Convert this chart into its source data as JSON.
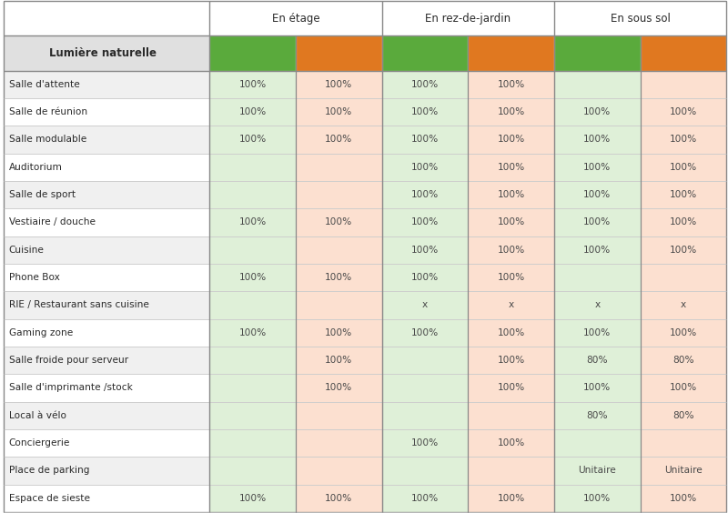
{
  "row_labels": [
    "Lumière naturelle",
    "Salle d'attente",
    "Salle de réunion",
    "Salle modulable",
    "Auditorium",
    "Salle de sport",
    "Vestiaire / douche",
    "Cuisine",
    "Phone Box",
    "RIE / Restaurant sans cuisine",
    "Gaming zone",
    "Salle froide pour serveur",
    "Salle d'imprimante /stock",
    "Local à vélo",
    "Conciergerie",
    "Place de parking",
    "Espace de sieste"
  ],
  "col_groups": [
    "En étage",
    "En rez-de-jardin",
    "En sous sol"
  ],
  "green_color": "#5aaa3c",
  "orange_color": "#e07820",
  "light_green_bg": "#dff0d8",
  "light_orange_bg": "#fce0d0",
  "lumiere_bg": "#e0e0e0",
  "cell_data": [
    [
      "",
      "",
      "",
      "",
      "",
      ""
    ],
    [
      "100%",
      "100%",
      "100%",
      "100%",
      "",
      ""
    ],
    [
      "100%",
      "100%",
      "100%",
      "100%",
      "100%",
      "100%"
    ],
    [
      "100%",
      "100%",
      "100%",
      "100%",
      "100%",
      "100%"
    ],
    [
      "",
      "",
      "100%",
      "100%",
      "100%",
      "100%"
    ],
    [
      "",
      "",
      "100%",
      "100%",
      "100%",
      "100%"
    ],
    [
      "100%",
      "100%",
      "100%",
      "100%",
      "100%",
      "100%"
    ],
    [
      "",
      "",
      "100%",
      "100%",
      "100%",
      "100%"
    ],
    [
      "100%",
      "100%",
      "100%",
      "100%",
      "",
      ""
    ],
    [
      "",
      "",
      "x",
      "x",
      "x",
      "x"
    ],
    [
      "100%",
      "100%",
      "100%",
      "100%",
      "100%",
      "100%"
    ],
    [
      "",
      "100%",
      "",
      "100%",
      "80%",
      "80%"
    ],
    [
      "",
      "100%",
      "",
      "100%",
      "100%",
      "100%"
    ],
    [
      "",
      "",
      "",
      "",
      "80%",
      "80%"
    ],
    [
      "",
      "",
      "100%",
      "100%",
      "",
      ""
    ],
    [
      "",
      "",
      "",
      "",
      "Unitaire",
      "Unitaire"
    ],
    [
      "100%",
      "100%",
      "100%",
      "100%",
      "100%",
      "100%"
    ]
  ],
  "col_colors": [
    "#dff0d8",
    "#fce0d0",
    "#dff0d8",
    "#fce0d0",
    "#dff0d8",
    "#fce0d0"
  ],
  "label_col_bg_odd": "#f0f0f0",
  "label_col_bg_even": "#ffffff",
  "header_text_color": "#2a2a2a",
  "cell_text_color": "#4a4a4a",
  "label_text_color": "#2a2a2a"
}
